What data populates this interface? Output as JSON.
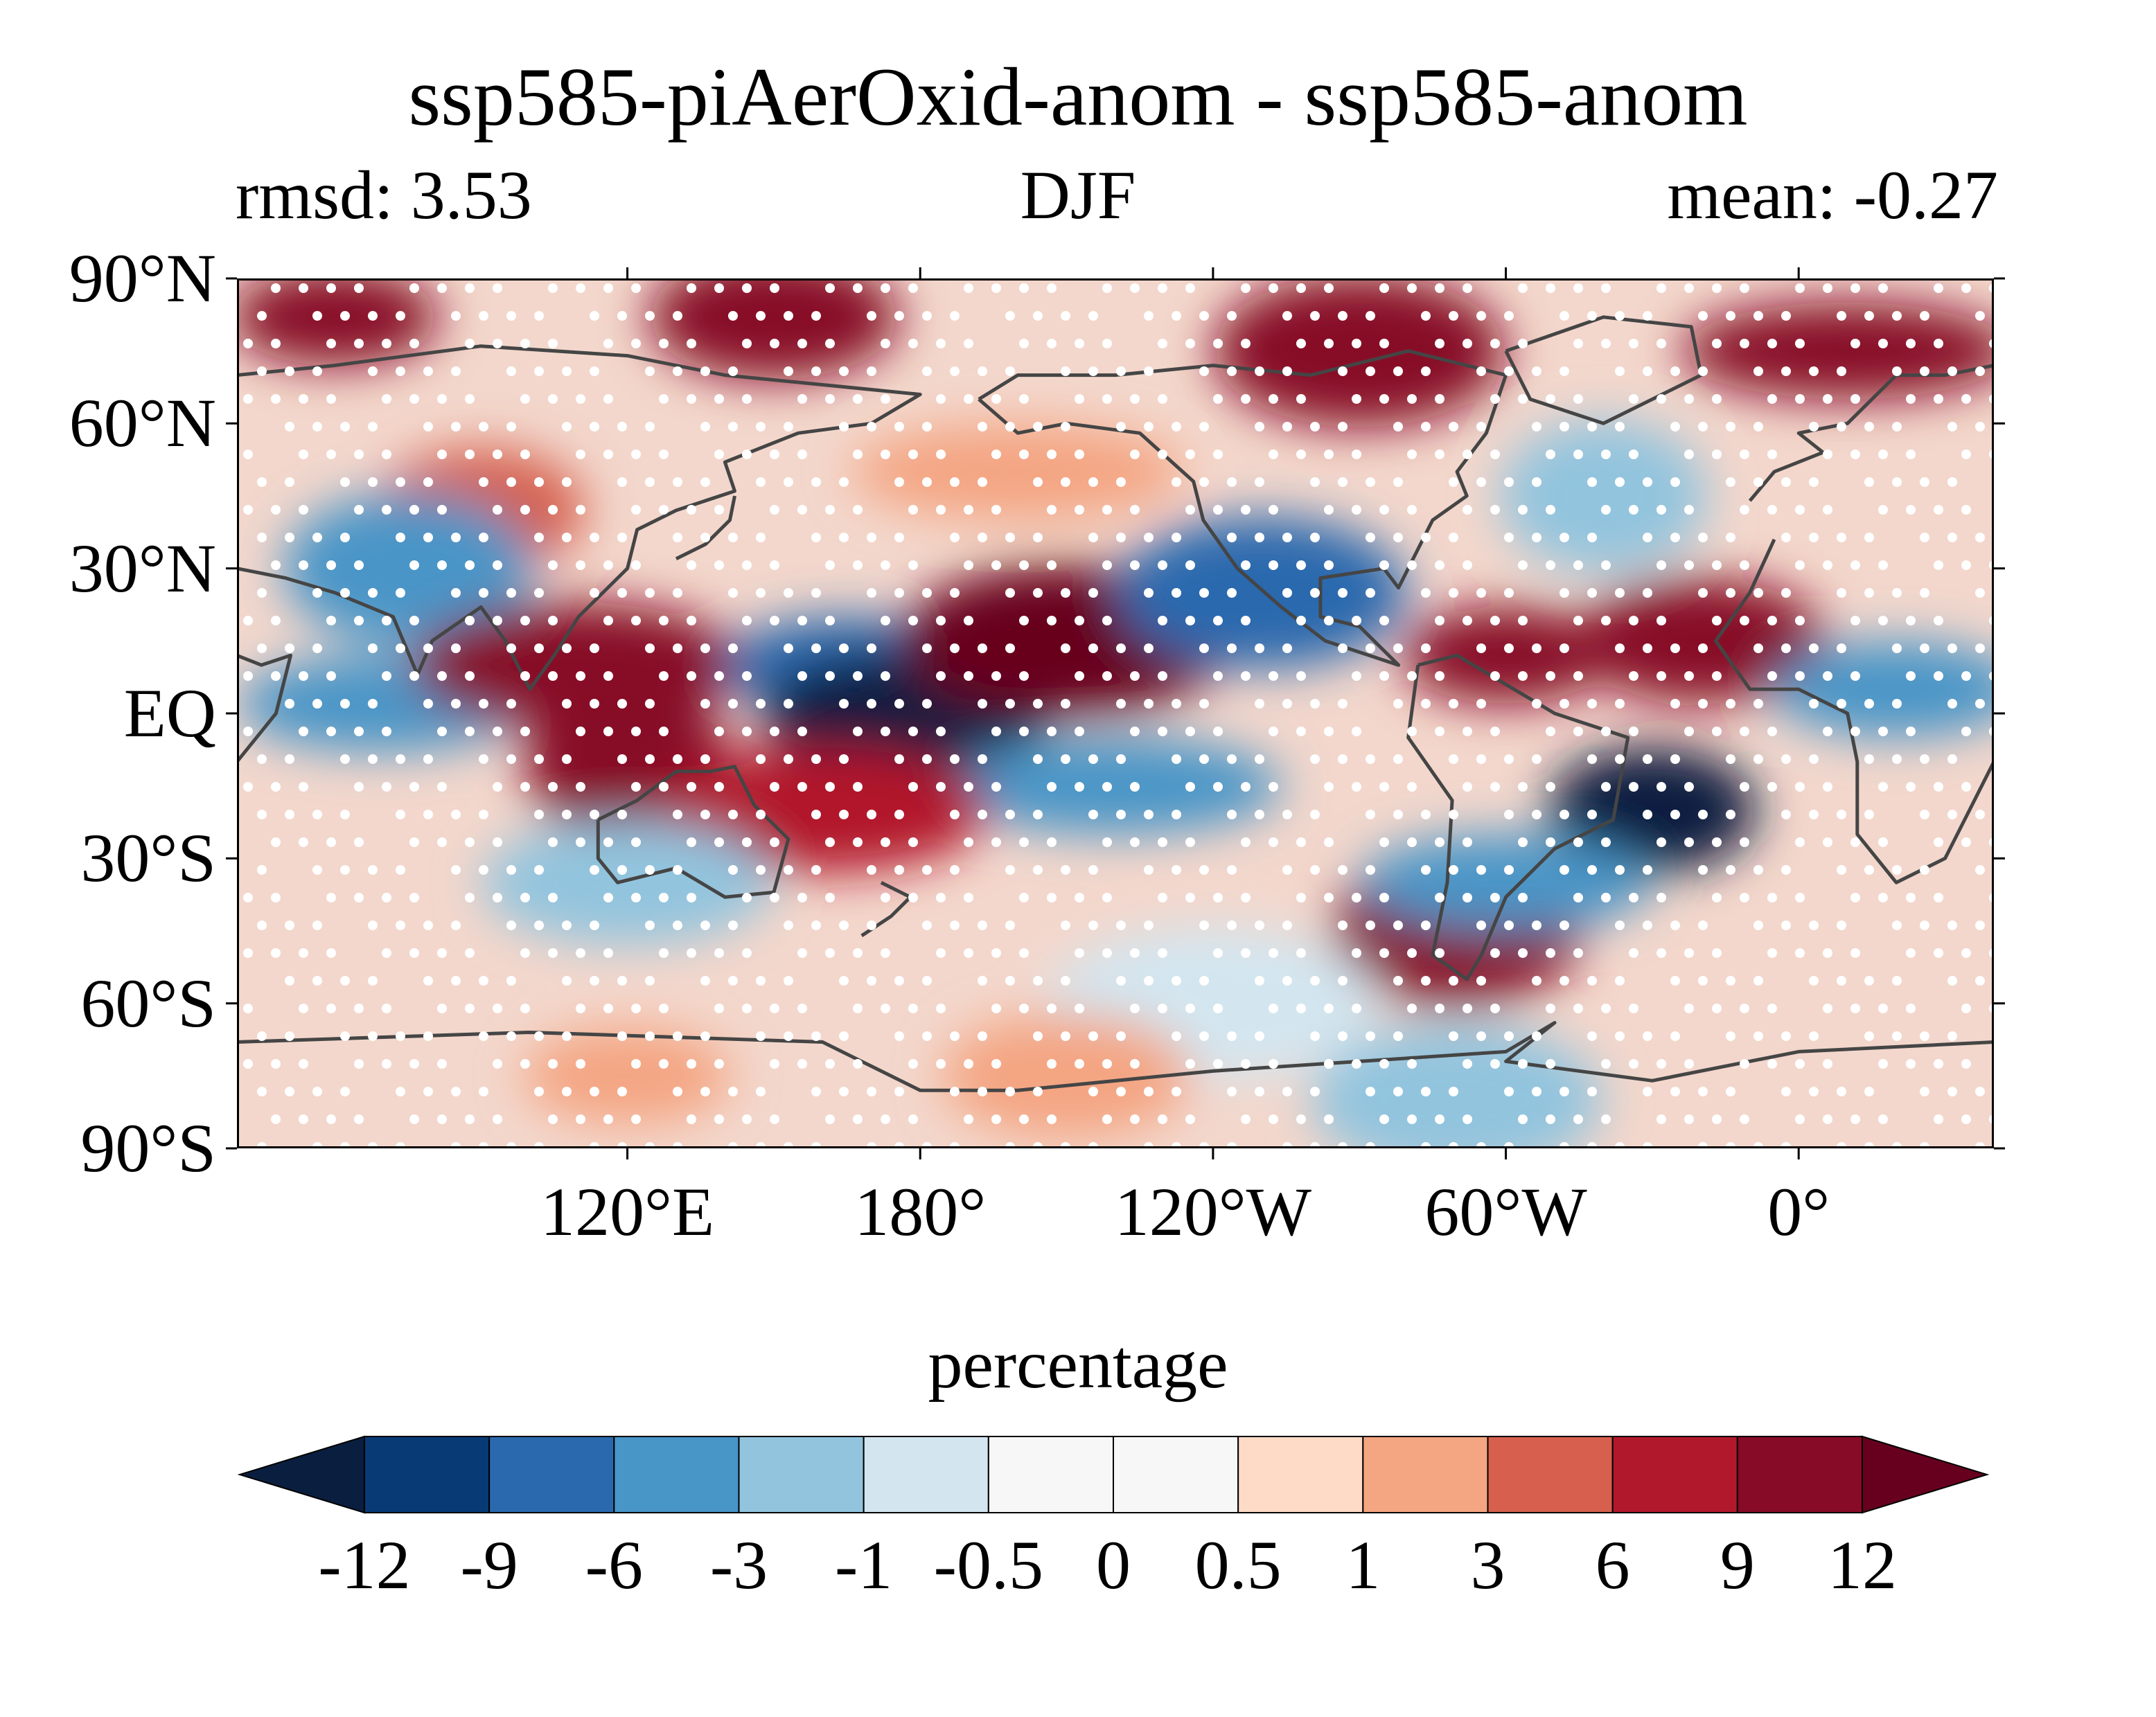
{
  "title": "ssp585-piAerOxid-anom - ssp585-anom",
  "subtitle": {
    "left": "rmsd: 3.53",
    "center": "DJF",
    "right": "mean: -0.27"
  },
  "axes": {
    "y_ticks": [
      {
        "label": "90°N",
        "lat": 90
      },
      {
        "label": "60°N",
        "lat": 60
      },
      {
        "label": "30°N",
        "lat": 30
      },
      {
        "label": "EQ",
        "lat": 0
      },
      {
        "label": "30°S",
        "lat": -30
      },
      {
        "label": "60°S",
        "lat": -60
      },
      {
        "label": "90°S",
        "lat": -90
      }
    ],
    "x_ticks": [
      {
        "label": "120°E",
        "lon": 120
      },
      {
        "label": "180°",
        "lon": 180
      },
      {
        "label": "120°W",
        "lon": 240
      },
      {
        "label": "60°W",
        "lon": 300
      },
      {
        "label": "0°",
        "lon": 360
      }
    ],
    "lon_range": [
      40,
      400
    ],
    "lat_range": [
      -90,
      90
    ]
  },
  "colorbar": {
    "title": "percentage",
    "ticks": [
      "-12",
      "-9",
      "-6",
      "-3",
      "-1",
      "-0.5",
      "0",
      "0.5",
      "1",
      "3",
      "6",
      "9",
      "12"
    ],
    "colors": [
      "#083a75",
      "#2a69ae",
      "#4895c7",
      "#92c4de",
      "#d3e6f0",
      "#f7f7f7",
      "#f7f7f7",
      "#fddbc7",
      "#f4a582",
      "#d6604d",
      "#b2182b",
      "#870b26"
    ],
    "under_color": "#0a1f3f",
    "over_color": "#67001f",
    "extend": "both"
  },
  "map": {
    "stipple_color": "#ffffff",
    "coastline_color": "#454545",
    "anomaly_patches": [
      {
        "lon": 60,
        "lat": 82,
        "value": 9
      },
      {
        "lon": 150,
        "lat": 82,
        "value": 9
      },
      {
        "lon": 270,
        "lat": 75,
        "value": 9
      },
      {
        "lon": 370,
        "lat": 75,
        "value": 9
      },
      {
        "lon": 90,
        "lat": 42,
        "value": 3
      },
      {
        "lon": 75,
        "lat": 30,
        "value": -6
      },
      {
        "lon": 70,
        "lat": 2,
        "value": -6
      },
      {
        "lon": 110,
        "lat": 10,
        "value": 9
      },
      {
        "lon": 120,
        "lat": -10,
        "value": 9
      },
      {
        "lon": 165,
        "lat": 10,
        "value": -9
      },
      {
        "lon": 177,
        "lat": 0,
        "value": -12
      },
      {
        "lon": 210,
        "lat": 15,
        "value": 12
      },
      {
        "lon": 300,
        "lat": 12,
        "value": 9
      },
      {
        "lon": 340,
        "lat": 15,
        "value": 9
      },
      {
        "lon": 250,
        "lat": 25,
        "value": -9
      },
      {
        "lon": 220,
        "lat": -15,
        "value": -6
      },
      {
        "lon": 330,
        "lat": -20,
        "value": -12
      },
      {
        "lon": 290,
        "lat": -45,
        "value": 9
      },
      {
        "lon": 300,
        "lat": -35,
        "value": -6
      },
      {
        "lon": 160,
        "lat": -20,
        "value": 6
      },
      {
        "lon": 320,
        "lat": 45,
        "value": -3
      },
      {
        "lon": 380,
        "lat": 5,
        "value": -6
      },
      {
        "lon": 120,
        "lat": -35,
        "value": -3
      },
      {
        "lon": 240,
        "lat": -60,
        "value": -1
      },
      {
        "lon": 120,
        "lat": -75,
        "value": 1
      },
      {
        "lon": 210,
        "lat": -75,
        "value": 1
      },
      {
        "lon": 290,
        "lat": -80,
        "value": -3
      },
      {
        "lon": 200,
        "lat": 50,
        "value": 1
      }
    ]
  }
}
